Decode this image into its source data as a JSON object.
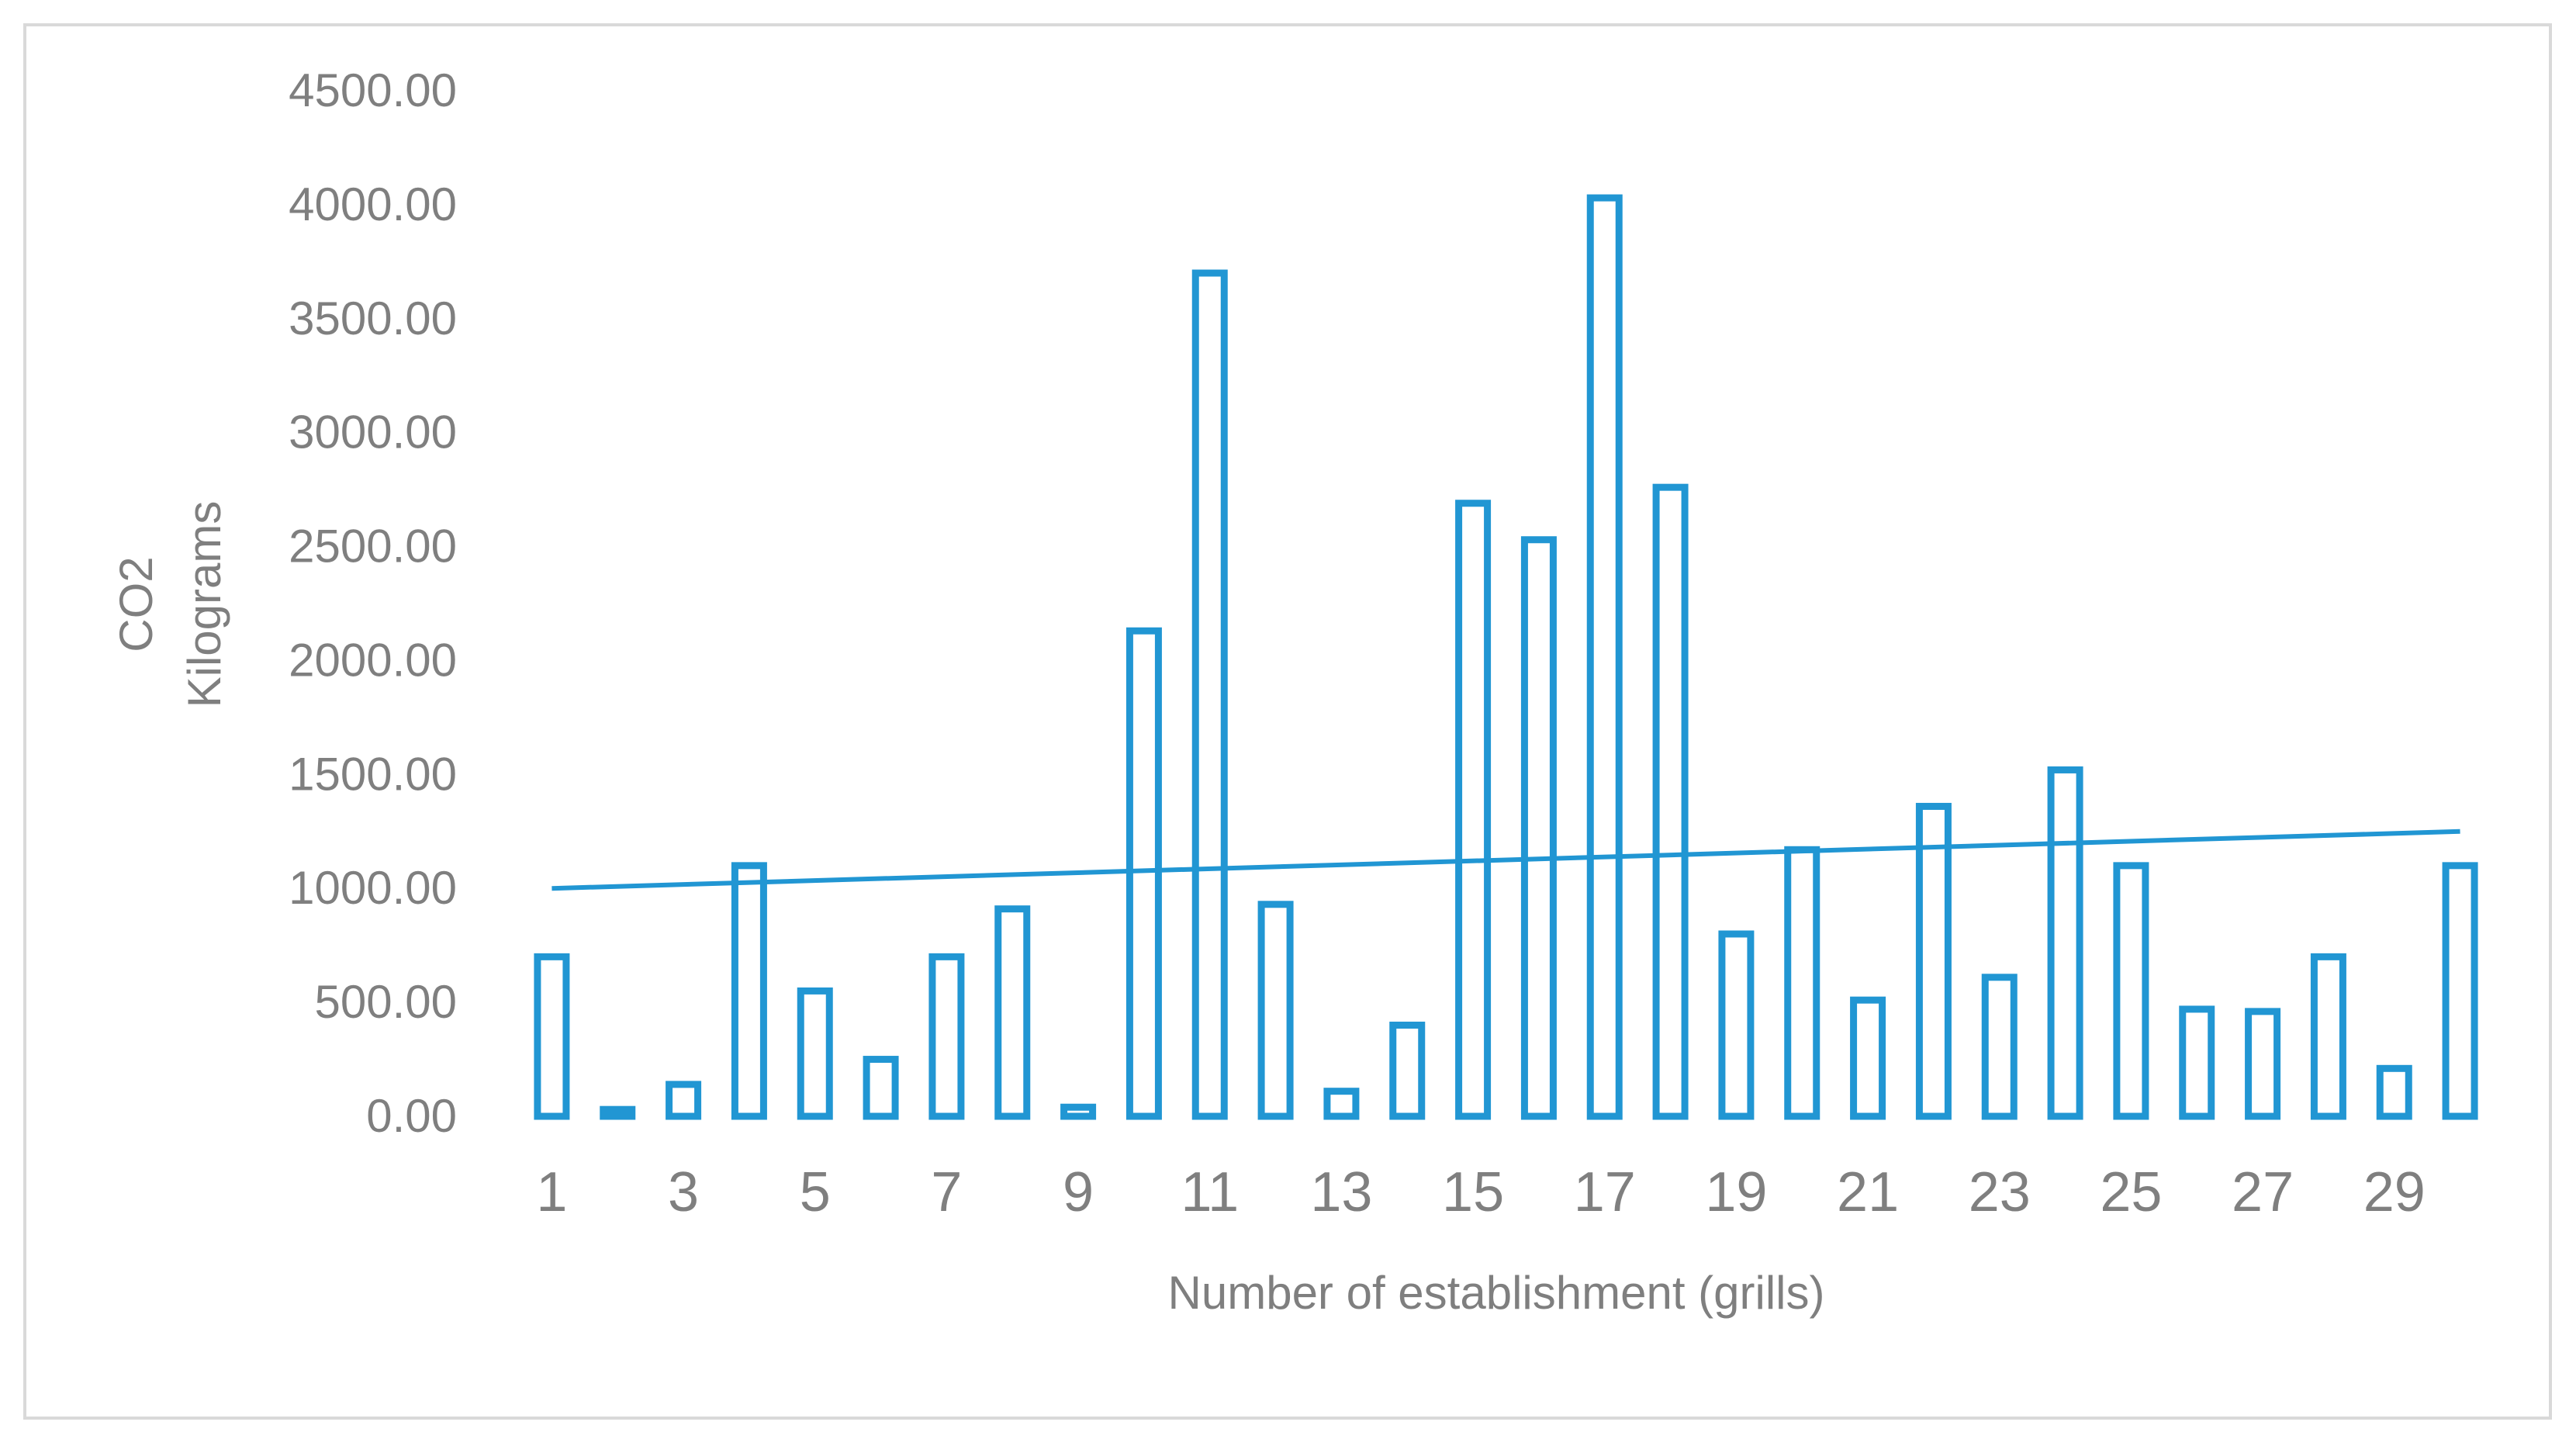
{
  "chart_data": {
    "type": "bar",
    "title": "",
    "xlabel": "Number of establishment  (grills)",
    "ylabel_lines": [
      "CO2",
      "Kilograms"
    ],
    "ylim": [
      0,
      4500
    ],
    "y_tick_values": [
      0,
      500,
      1000,
      1500,
      2000,
      2500,
      3000,
      3500,
      4000,
      4500
    ],
    "y_tick_labels": [
      "0.00",
      "500.00",
      "1000.00",
      "1500.00",
      "2000.00",
      "2500.00",
      "3000.00",
      "3500.00",
      "4000.00",
      "4500.00"
    ],
    "categories": [
      1,
      2,
      3,
      4,
      5,
      6,
      7,
      8,
      9,
      10,
      11,
      12,
      13,
      14,
      15,
      16,
      17,
      18,
      19,
      20,
      21,
      22,
      23,
      24,
      25,
      26,
      27,
      28,
      29,
      30
    ],
    "x_tick_labels": [
      "1",
      "3",
      "5",
      "7",
      "9",
      "11",
      "13",
      "15",
      "17",
      "19",
      "21",
      "23",
      "25",
      "27",
      "29"
    ],
    "series": [
      {
        "values": [
          700,
          30,
          140,
          1100,
          550,
          250,
          700,
          910,
          40,
          2130,
          3700,
          930,
          110,
          400,
          2690,
          2530,
          4030,
          2760,
          800,
          1170,
          510,
          1360,
          610,
          1520,
          1100,
          470,
          460,
          700,
          210,
          1100
        ],
        "style": "hollow",
        "color": "#2196d3"
      }
    ],
    "trendline": {
      "type": "linear",
      "start_value": 1000,
      "end_value": 1250,
      "color": "#2196d3"
    },
    "grid": false,
    "legend": "none"
  }
}
